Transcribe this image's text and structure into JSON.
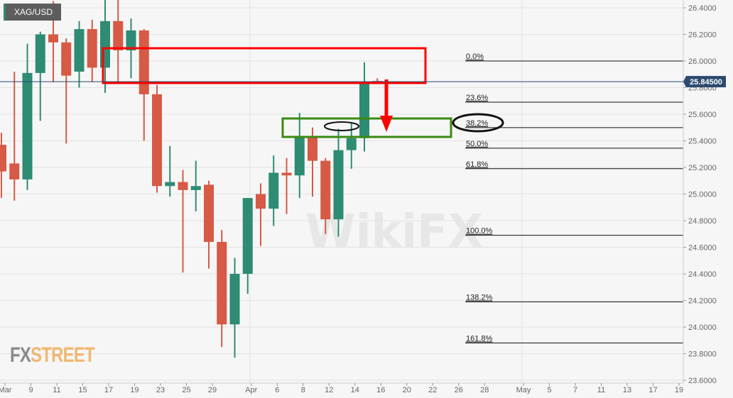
{
  "symbol": "XAG/USD",
  "logo": {
    "fx": "FX",
    "street": "STREET"
  },
  "watermark": "WikiFX",
  "chart_data": {
    "type": "candlestick",
    "title": "",
    "xlabel": "",
    "ylabel": "",
    "ylim": [
      23.6,
      26.4
    ],
    "grid": true,
    "colors": {
      "up": "#2e8b74",
      "down": "#d65a45",
      "price_badge": "#2b4a6f",
      "zone_red": "#ff0000",
      "zone_green": "#3a8a12"
    },
    "y_ticks": [
      "26.4000",
      "26.2000",
      "26.0000",
      "25.8000",
      "25.6000",
      "25.4000",
      "25.2000",
      "25.0000",
      "24.8000",
      "24.6000",
      "24.4000",
      "24.2000",
      "24.0000",
      "23.8000",
      "23.6000"
    ],
    "x_ticks": [
      {
        "label": "Mar",
        "date": "Mar 5"
      },
      {
        "label": "9",
        "date": "Mar 9"
      },
      {
        "label": "11",
        "date": "Mar 11"
      },
      {
        "label": "15",
        "date": "Mar 15"
      },
      {
        "label": "17",
        "date": "Mar 17"
      },
      {
        "label": "19",
        "date": "Mar 19"
      },
      {
        "label": "23",
        "date": "Mar 23"
      },
      {
        "label": "25",
        "date": "Mar 25"
      },
      {
        "label": "29",
        "date": "Mar 29"
      },
      {
        "label": "Apr",
        "date": "Apr 1"
      },
      {
        "label": "6",
        "date": "Apr 6"
      },
      {
        "label": "8",
        "date": "Apr 8"
      },
      {
        "label": "12",
        "date": "Apr 12"
      },
      {
        "label": "14",
        "date": "Apr 14"
      },
      {
        "label": "16",
        "date": "Apr 16"
      },
      {
        "label": "20",
        "date": "Apr 20"
      },
      {
        "label": "22",
        "date": "Apr 22"
      },
      {
        "label": "26",
        "date": "Apr 26"
      },
      {
        "label": "28",
        "date": "Apr 28"
      },
      {
        "label": "May",
        "date": "May 3"
      },
      {
        "label": "5",
        "date": "May 5"
      },
      {
        "label": "7",
        "date": "May 7"
      },
      {
        "label": "11",
        "date": "May 11"
      },
      {
        "label": "13",
        "date": "May 13"
      },
      {
        "label": "17",
        "date": "May 17"
      },
      {
        "label": "19",
        "date": "May 19"
      }
    ],
    "candles": [
      {
        "date": "Mar 5",
        "o": 25.37,
        "h": 25.46,
        "l": 24.97,
        "c": 25.17
      },
      {
        "date": "Mar 8",
        "o": 25.23,
        "h": 25.92,
        "l": 24.95,
        "c": 25.11
      },
      {
        "date": "Mar 9",
        "o": 25.11,
        "h": 26.13,
        "l": 25.03,
        "c": 25.91
      },
      {
        "date": "Mar 10",
        "o": 25.91,
        "h": 26.22,
        "l": 25.55,
        "c": 26.2
      },
      {
        "date": "Mar 11",
        "o": 26.2,
        "h": 26.45,
        "l": 25.84,
        "c": 26.14
      },
      {
        "date": "Mar 12",
        "o": 26.14,
        "h": 26.17,
        "l": 25.38,
        "c": 25.89
      },
      {
        "date": "Mar 15",
        "o": 25.92,
        "h": 26.3,
        "l": 25.8,
        "c": 26.24
      },
      {
        "date": "Mar 16",
        "o": 26.24,
        "h": 26.31,
        "l": 25.84,
        "c": 25.95
      },
      {
        "date": "Mar 17",
        "o": 25.95,
        "h": 26.5,
        "l": 25.76,
        "c": 26.3
      },
      {
        "date": "Mar 18",
        "o": 26.3,
        "h": 26.5,
        "l": 25.83,
        "c": 26.08
      },
      {
        "date": "Mar 19",
        "o": 26.08,
        "h": 26.32,
        "l": 25.87,
        "c": 26.23
      },
      {
        "date": "Mar 22",
        "o": 26.23,
        "h": 26.24,
        "l": 25.4,
        "c": 25.75
      },
      {
        "date": "Mar 23",
        "o": 25.75,
        "h": 25.82,
        "l": 25.01,
        "c": 25.06
      },
      {
        "date": "Mar 24",
        "o": 25.06,
        "h": 25.36,
        "l": 24.98,
        "c": 25.09
      },
      {
        "date": "Mar 25",
        "o": 25.09,
        "h": 25.18,
        "l": 24.41,
        "c": 25.03
      },
      {
        "date": "Mar 26",
        "o": 25.03,
        "h": 25.25,
        "l": 24.87,
        "c": 25.06
      },
      {
        "date": "Mar 29",
        "o": 25.07,
        "h": 25.1,
        "l": 24.44,
        "c": 24.64
      },
      {
        "date": "Mar 30",
        "o": 24.64,
        "h": 24.73,
        "l": 23.85,
        "c": 24.02
      },
      {
        "date": "Mar 31",
        "o": 24.02,
        "h": 24.52,
        "l": 23.77,
        "c": 24.4
      },
      {
        "date": "Apr 1",
        "o": 24.4,
        "h": 24.97,
        "l": 24.25,
        "c": 24.97
      },
      {
        "date": "Apr 5",
        "o": 25.0,
        "h": 25.08,
        "l": 24.61,
        "c": 24.89
      },
      {
        "date": "Apr 6",
        "o": 24.89,
        "h": 25.29,
        "l": 24.76,
        "c": 25.16
      },
      {
        "date": "Apr 7",
        "o": 25.16,
        "h": 25.27,
        "l": 24.85,
        "c": 25.14
      },
      {
        "date": "Apr 8",
        "o": 25.14,
        "h": 25.61,
        "l": 24.97,
        "c": 25.43
      },
      {
        "date": "Apr 9",
        "o": 25.43,
        "h": 25.5,
        "l": 24.98,
        "c": 25.25
      },
      {
        "date": "Apr 12",
        "o": 25.25,
        "h": 25.27,
        "l": 24.7,
        "c": 24.81
      },
      {
        "date": "Apr 13",
        "o": 24.81,
        "h": 25.49,
        "l": 24.68,
        "c": 25.33
      },
      {
        "date": "Apr 14",
        "o": 25.33,
        "h": 25.53,
        "l": 25.19,
        "c": 25.42
      },
      {
        "date": "Apr 15",
        "o": 25.42,
        "h": 25.99,
        "l": 25.32,
        "c": 25.84
      },
      {
        "date": "Apr 16",
        "o": 25.85,
        "h": 25.87,
        "l": 25.83,
        "c": 25.845
      }
    ],
    "current_price": {
      "value": 25.845,
      "label": "25.84500"
    },
    "fibonacci": {
      "high": 26.0,
      "low": 24.69,
      "start_date": "Apr 27",
      "levels": [
        {
          "ratio": 0.0,
          "label": "0.0%"
        },
        {
          "ratio": 0.236,
          "label": "23.6%"
        },
        {
          "ratio": 0.382,
          "label": "38.2%"
        },
        {
          "ratio": 0.5,
          "label": "50.0%"
        },
        {
          "ratio": 0.618,
          "label": "61.8%"
        },
        {
          "ratio": 1.0,
          "label": "100.0%"
        },
        {
          "ratio": 1.382,
          "label": "138.2%"
        },
        {
          "ratio": 1.618,
          "label": "161.8%"
        }
      ]
    }
  }
}
